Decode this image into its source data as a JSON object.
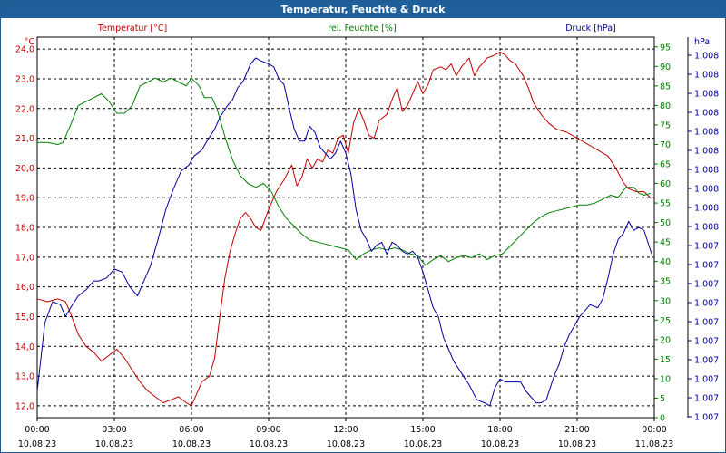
{
  "window_title": "Temperatur, Feuchte & Druck",
  "colors": {
    "temperature": "#c00000",
    "humidity": "#008000",
    "pressure": "#0000a0",
    "titlebar": "#1f5f9a",
    "grid": "#000000"
  },
  "chart_data": {
    "type": "line",
    "title": "Temperatur, Feuchte & Druck",
    "grid": true,
    "x_ticks": [
      {
        "time": "00:00",
        "date": "10.08.23"
      },
      {
        "time": "03:00",
        "date": "10.08.23"
      },
      {
        "time": "06:00",
        "date": "10.08.23"
      },
      {
        "time": "09:00",
        "date": "10.08.23"
      },
      {
        "time": "12:00",
        "date": "10.08.23"
      },
      {
        "time": "15:00",
        "date": "10.08.23"
      },
      {
        "time": "18:00",
        "date": "10.08.23"
      },
      {
        "time": "21:00",
        "date": "10.08.23"
      },
      {
        "time": "00:00",
        "date": "11.08.23"
      }
    ],
    "x_range_hours": [
      0,
      24
    ],
    "axes": {
      "temperature": {
        "label": "Temperatur [°C]",
        "unit": "°C",
        "range": [
          11.6,
          24.4
        ],
        "ticks": [
          "24,0",
          "23,0",
          "22,0",
          "21,0",
          "20,0",
          "19,0",
          "18,0",
          "17,0",
          "16,0",
          "15,0",
          "14,0",
          "13,0",
          "12,0"
        ]
      },
      "humidity": {
        "label": "rel. Feuchte [%]",
        "unit": "%",
        "range": [
          0,
          97.5
        ],
        "ticks": [
          "95",
          "90",
          "85",
          "80",
          "75",
          "70",
          "65",
          "60",
          "55",
          "50",
          "45",
          "40",
          "35",
          "30",
          "25",
          "20",
          "15",
          "10",
          "5",
          "0"
        ]
      },
      "pressure": {
        "label": "Druck [hPa]",
        "unit": "hPa",
        "ticks": [
          "1.008",
          "1.008",
          "1.008",
          "1.008",
          "1.008",
          "1.008",
          "1.008",
          "1.008",
          "1.008",
          "1.008",
          "1.007",
          "1.007",
          "1.007",
          "1.007",
          "1.007",
          "1.007",
          "1.007",
          "1.007",
          "1.007",
          "1.007"
        ]
      }
    },
    "series": [
      {
        "name": "Temperatur [°C]",
        "axis": "temperature",
        "points": [
          [
            0,
            15.6
          ],
          [
            0.4,
            15.5
          ],
          [
            0.8,
            15.6
          ],
          [
            1.1,
            15.5
          ],
          [
            1.3,
            15.1
          ],
          [
            1.6,
            14.4
          ],
          [
            1.9,
            14.0
          ],
          [
            2.2,
            13.8
          ],
          [
            2.5,
            13.5
          ],
          [
            2.8,
            13.7
          ],
          [
            3.1,
            13.9
          ],
          [
            3.4,
            13.6
          ],
          [
            3.7,
            13.2
          ],
          [
            4.0,
            12.8
          ],
          [
            4.3,
            12.5
          ],
          [
            4.6,
            12.3
          ],
          [
            4.9,
            12.1
          ],
          [
            5.2,
            12.2
          ],
          [
            5.5,
            12.3
          ],
          [
            5.8,
            12.1
          ],
          [
            6.0,
            12.0
          ],
          [
            6.2,
            12.4
          ],
          [
            6.4,
            12.8
          ],
          [
            6.7,
            13.0
          ],
          [
            6.9,
            13.6
          ],
          [
            7.1,
            15.0
          ],
          [
            7.3,
            16.3
          ],
          [
            7.5,
            17.2
          ],
          [
            7.7,
            17.8
          ],
          [
            7.9,
            18.3
          ],
          [
            8.1,
            18.5
          ],
          [
            8.3,
            18.3
          ],
          [
            8.5,
            18.0
          ],
          [
            8.7,
            17.9
          ],
          [
            9.0,
            18.6
          ],
          [
            9.3,
            19.2
          ],
          [
            9.6,
            19.6
          ],
          [
            9.9,
            20.1
          ],
          [
            10.1,
            19.4
          ],
          [
            10.3,
            19.7
          ],
          [
            10.5,
            20.3
          ],
          [
            10.7,
            20.0
          ],
          [
            10.9,
            20.3
          ],
          [
            11.1,
            20.2
          ],
          [
            11.3,
            20.6
          ],
          [
            11.5,
            20.5
          ],
          [
            11.7,
            21.0
          ],
          [
            11.9,
            21.1
          ],
          [
            12.1,
            20.5
          ],
          [
            12.3,
            21.5
          ],
          [
            12.5,
            22.0
          ],
          [
            12.7,
            21.6
          ],
          [
            12.9,
            21.1
          ],
          [
            13.1,
            21.0
          ],
          [
            13.3,
            21.6
          ],
          [
            13.6,
            21.8
          ],
          [
            13.8,
            22.3
          ],
          [
            14.0,
            22.7
          ],
          [
            14.2,
            21.9
          ],
          [
            14.4,
            22.1
          ],
          [
            14.6,
            22.5
          ],
          [
            14.8,
            22.9
          ],
          [
            15.0,
            22.5
          ],
          [
            15.2,
            22.8
          ],
          [
            15.4,
            23.3
          ],
          [
            15.7,
            23.4
          ],
          [
            15.9,
            23.3
          ],
          [
            16.1,
            23.5
          ],
          [
            16.3,
            23.1
          ],
          [
            16.5,
            23.4
          ],
          [
            16.8,
            23.7
          ],
          [
            17.0,
            23.1
          ],
          [
            17.2,
            23.4
          ],
          [
            17.5,
            23.7
          ],
          [
            17.8,
            23.8
          ],
          [
            18.0,
            23.9
          ],
          [
            18.2,
            23.8
          ],
          [
            18.4,
            23.6
          ],
          [
            18.6,
            23.5
          ],
          [
            18.9,
            23.1
          ],
          [
            19.1,
            22.7
          ],
          [
            19.3,
            22.2
          ],
          [
            19.6,
            21.8
          ],
          [
            19.9,
            21.5
          ],
          [
            20.2,
            21.3
          ],
          [
            20.6,
            21.2
          ],
          [
            21.0,
            21.0
          ],
          [
            21.4,
            20.8
          ],
          [
            21.8,
            20.6
          ],
          [
            22.2,
            20.4
          ],
          [
            22.5,
            20.0
          ],
          [
            22.8,
            19.5
          ],
          [
            23.0,
            19.3
          ],
          [
            23.3,
            19.2
          ],
          [
            23.6,
            19.2
          ],
          [
            23.85,
            19.0
          ]
        ]
      },
      {
        "name": "rel. Feuchte [%]",
        "axis": "humidity",
        "points": [
          [
            0,
            70.5
          ],
          [
            0.4,
            70.5
          ],
          [
            0.8,
            70.0
          ],
          [
            1.0,
            70.5
          ],
          [
            1.3,
            75.0
          ],
          [
            1.6,
            80.0
          ],
          [
            1.9,
            81.0
          ],
          [
            2.2,
            82.0
          ],
          [
            2.5,
            83.0
          ],
          [
            2.8,
            81.0
          ],
          [
            3.1,
            78.0
          ],
          [
            3.4,
            78.0
          ],
          [
            3.7,
            80.0
          ],
          [
            4.0,
            85.0
          ],
          [
            4.3,
            86.0
          ],
          [
            4.6,
            87.0
          ],
          [
            4.9,
            86.0
          ],
          [
            5.2,
            87.0
          ],
          [
            5.5,
            86.0
          ],
          [
            5.8,
            85.0
          ],
          [
            6.0,
            87.0
          ],
          [
            6.3,
            85.0
          ],
          [
            6.5,
            82.0
          ],
          [
            6.8,
            82.0
          ],
          [
            7.0,
            79.0
          ],
          [
            7.3,
            72.0
          ],
          [
            7.6,
            66.0
          ],
          [
            7.9,
            62.0
          ],
          [
            8.2,
            60.0
          ],
          [
            8.5,
            59.0
          ],
          [
            8.8,
            60.0
          ],
          [
            9.1,
            58.0
          ],
          [
            9.4,
            54.0
          ],
          [
            9.7,
            51.0
          ],
          [
            10.0,
            49.0
          ],
          [
            10.3,
            47.0
          ],
          [
            10.6,
            45.5
          ],
          [
            10.9,
            45.0
          ],
          [
            11.2,
            44.5
          ],
          [
            11.5,
            44.0
          ],
          [
            11.8,
            43.5
          ],
          [
            12.1,
            43.0
          ],
          [
            12.4,
            40.5
          ],
          [
            12.7,
            42.0
          ],
          [
            13.0,
            43.0
          ],
          [
            13.3,
            43.5
          ],
          [
            13.6,
            43.0
          ],
          [
            13.9,
            43.5
          ],
          [
            14.2,
            43.0
          ],
          [
            14.5,
            42.0
          ],
          [
            14.8,
            41.5
          ],
          [
            15.1,
            39.0
          ],
          [
            15.4,
            40.5
          ],
          [
            15.7,
            41.5
          ],
          [
            16.0,
            40.0
          ],
          [
            16.3,
            41.0
          ],
          [
            16.6,
            41.5
          ],
          [
            16.9,
            41.0
          ],
          [
            17.2,
            42.0
          ],
          [
            17.5,
            40.5
          ],
          [
            17.8,
            41.5
          ],
          [
            18.1,
            42.0
          ],
          [
            18.4,
            44.0
          ],
          [
            18.7,
            46.0
          ],
          [
            19.0,
            48.0
          ],
          [
            19.3,
            50.0
          ],
          [
            19.6,
            51.5
          ],
          [
            19.9,
            52.5
          ],
          [
            20.2,
            53.0
          ],
          [
            20.5,
            53.5
          ],
          [
            20.8,
            54.0
          ],
          [
            21.1,
            54.5
          ],
          [
            21.4,
            54.5
          ],
          [
            21.7,
            55.0
          ],
          [
            22.0,
            56.0
          ],
          [
            22.3,
            57.0
          ],
          [
            22.6,
            56.5
          ],
          [
            22.9,
            59.0
          ],
          [
            23.2,
            59.0
          ],
          [
            23.4,
            57.5
          ],
          [
            23.6,
            57.0
          ],
          [
            23.85,
            57.5
          ]
        ]
      },
      {
        "name": "Druck [hPa]",
        "axis": "pressure",
        "points": [
          [
            0,
            12.5
          ],
          [
            0.3,
            14.8
          ],
          [
            0.6,
            15.5
          ],
          [
            0.9,
            15.4
          ],
          [
            1.1,
            15.0
          ],
          [
            1.3,
            15.3
          ],
          [
            1.6,
            15.7
          ],
          [
            1.9,
            15.9
          ],
          [
            2.2,
            16.2
          ],
          [
            2.4,
            16.2
          ],
          [
            2.7,
            16.3
          ],
          [
            3.0,
            16.6
          ],
          [
            3.3,
            16.5
          ],
          [
            3.6,
            16.0
          ],
          [
            3.9,
            15.7
          ],
          [
            4.1,
            16.1
          ],
          [
            4.4,
            16.7
          ],
          [
            4.7,
            17.6
          ],
          [
            5.0,
            18.6
          ],
          [
            5.3,
            19.3
          ],
          [
            5.6,
            19.9
          ],
          [
            5.9,
            20.1
          ],
          [
            6.1,
            20.4
          ],
          [
            6.4,
            20.6
          ],
          [
            6.6,
            20.9
          ],
          [
            6.9,
            21.3
          ],
          [
            7.1,
            21.7
          ],
          [
            7.4,
            22.1
          ],
          [
            7.6,
            22.3
          ],
          [
            7.8,
            22.7
          ],
          [
            8.0,
            22.9
          ],
          [
            8.3,
            23.5
          ],
          [
            8.5,
            23.7
          ],
          [
            8.7,
            23.6
          ],
          [
            9.0,
            23.5
          ],
          [
            9.2,
            23.4
          ],
          [
            9.4,
            23.0
          ],
          [
            9.6,
            22.8
          ],
          [
            9.8,
            22.0
          ],
          [
            10.0,
            21.3
          ],
          [
            10.2,
            20.9
          ],
          [
            10.4,
            20.9
          ],
          [
            10.6,
            21.4
          ],
          [
            10.8,
            21.2
          ],
          [
            11.0,
            20.7
          ],
          [
            11.2,
            20.5
          ],
          [
            11.4,
            20.3
          ],
          [
            11.6,
            20.5
          ],
          [
            11.8,
            20.9
          ],
          [
            12.0,
            20.5
          ],
          [
            12.2,
            19.8
          ],
          [
            12.4,
            18.6
          ],
          [
            12.6,
            17.9
          ],
          [
            12.8,
            17.6
          ],
          [
            13.0,
            17.2
          ],
          [
            13.2,
            17.4
          ],
          [
            13.4,
            17.5
          ],
          [
            13.6,
            17.1
          ],
          [
            13.8,
            17.5
          ],
          [
            14.0,
            17.4
          ],
          [
            14.2,
            17.2
          ],
          [
            14.4,
            17.1
          ],
          [
            14.6,
            17.2
          ],
          [
            14.8,
            17.0
          ],
          [
            15.0,
            16.5
          ],
          [
            15.2,
            15.9
          ],
          [
            15.4,
            15.3
          ],
          [
            15.6,
            15.0
          ],
          [
            15.8,
            14.3
          ],
          [
            16.0,
            13.9
          ],
          [
            16.2,
            13.5
          ],
          [
            16.5,
            13.1
          ],
          [
            16.8,
            12.7
          ],
          [
            17.1,
            12.2
          ],
          [
            17.4,
            12.1
          ],
          [
            17.6,
            12.0
          ],
          [
            17.8,
            12.6
          ],
          [
            18.0,
            12.9
          ],
          [
            18.2,
            12.8
          ],
          [
            18.5,
            12.8
          ],
          [
            18.8,
            12.8
          ],
          [
            19.0,
            12.5
          ],
          [
            19.2,
            12.3
          ],
          [
            19.4,
            12.1
          ],
          [
            19.6,
            12.1
          ],
          [
            19.8,
            12.2
          ],
          [
            20.1,
            13.0
          ],
          [
            20.3,
            13.4
          ],
          [
            20.5,
            14.0
          ],
          [
            20.7,
            14.4
          ],
          [
            20.9,
            14.7
          ],
          [
            21.1,
            15.0
          ],
          [
            21.3,
            15.2
          ],
          [
            21.5,
            15.4
          ],
          [
            21.8,
            15.3
          ],
          [
            22.0,
            15.6
          ],
          [
            22.2,
            16.3
          ],
          [
            22.4,
            17.1
          ],
          [
            22.6,
            17.6
          ],
          [
            22.8,
            17.8
          ],
          [
            23.0,
            18.2
          ],
          [
            23.2,
            17.9
          ],
          [
            23.4,
            18.0
          ],
          [
            23.6,
            17.9
          ],
          [
            23.75,
            17.5
          ],
          [
            23.9,
            17.1
          ]
        ]
      }
    ]
  }
}
